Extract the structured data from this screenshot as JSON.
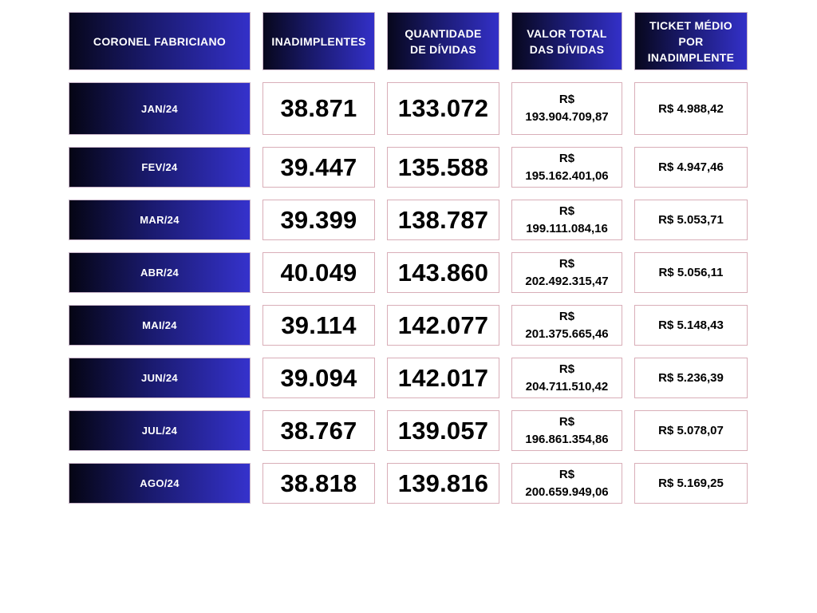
{
  "headers": {
    "city": "CORONEL FABRICIANO",
    "defaulters": "INADIMPLENTES",
    "debt_count": [
      "QUANTIDADE",
      "DE DÍVIDAS"
    ],
    "debt_total": [
      "VALOR TOTAL",
      "DAS DÍVIDAS"
    ],
    "avg_ticket": [
      "TICKET MÉDIO",
      "POR",
      "INADIMPLENTE"
    ]
  },
  "currency": "R$",
  "rows": [
    {
      "month": "JAN/24",
      "defaulters": "38.871",
      "debt_count": "133.072",
      "debt_total": "193.904.709,87",
      "avg_ticket": "R$ 4.988,42"
    },
    {
      "month": "FEV/24",
      "defaulters": "39.447",
      "debt_count": "135.588",
      "debt_total": "195.162.401,06",
      "avg_ticket": "R$ 4.947,46"
    },
    {
      "month": "MAR/24",
      "defaulters": "39.399",
      "debt_count": "138.787",
      "debt_total": "199.111.084,16",
      "avg_ticket": "R$ 5.053,71"
    },
    {
      "month": "ABR/24",
      "defaulters": "40.049",
      "debt_count": "143.860",
      "debt_total": "202.492.315,47",
      "avg_ticket": "R$ 5.056,11"
    },
    {
      "month": "MAI/24",
      "defaulters": "39.114",
      "debt_count": "142.077",
      "debt_total": "201.375.665,46",
      "avg_ticket": "R$ 5.148,43"
    },
    {
      "month": "JUN/24",
      "defaulters": "39.094",
      "debt_count": "142.017",
      "debt_total": "204.711.510,42",
      "avg_ticket": "R$ 5.236,39"
    },
    {
      "month": "JUL/24",
      "defaulters": "38.767",
      "debt_count": "139.057",
      "debt_total": "196.861.354,86",
      "avg_ticket": "R$ 5.078,07"
    },
    {
      "month": "AGO/24",
      "defaulters": "38.818",
      "debt_count": "139.816",
      "debt_total": "200.659.949,06",
      "avg_ticket": "R$ 5.169,25"
    }
  ],
  "colors": {
    "header_dark": "#07071c",
    "header_blue": "#3330c8",
    "cell_border": "#d9aeb8"
  }
}
